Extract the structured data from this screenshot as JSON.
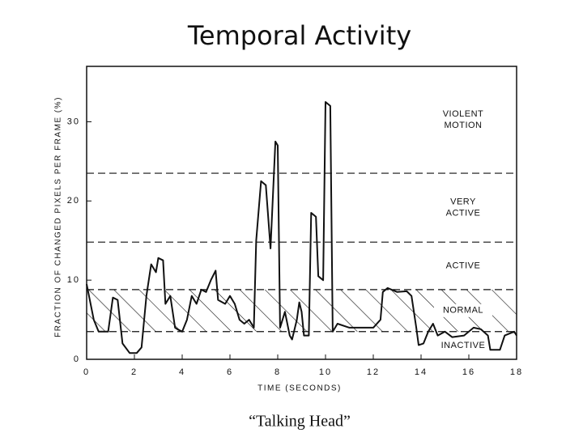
{
  "title": "Temporal Activity",
  "caption": "“Talking Head”",
  "chart_data": {
    "type": "line",
    "x_label": "TIME (SECONDS)",
    "y_label": "FRACTION OF CHANGED PIXELS PER FRAME (%)",
    "xlim": [
      0,
      18
    ],
    "xticks": [
      0,
      2,
      4,
      6,
      8,
      10,
      12,
      14,
      16,
      18
    ],
    "ylim": [
      0,
      37
    ],
    "yticks": [
      0,
      10,
      20,
      30
    ],
    "thresholds": [
      23.5,
      14.8,
      8.8,
      3.5
    ],
    "zones": [
      "VIOLENT MOTION",
      "VERY ACTIVE",
      "ACTIVE",
      "NORMAL",
      "INACTIVE"
    ],
    "color": "#111111",
    "x": [
      0,
      0.3,
      0.5,
      0.9,
      1.1,
      1.3,
      1.5,
      1.8,
      2.1,
      2.3,
      2.5,
      2.7,
      2.9,
      3.0,
      3.2,
      3.3,
      3.5,
      3.7,
      3.8,
      4.0,
      4.2,
      4.4,
      4.6,
      4.8,
      5.0,
      5.2,
      5.4,
      5.5,
      5.8,
      6.0,
      6.2,
      6.4,
      6.6,
      6.8,
      7.0,
      7.1,
      7.3,
      7.5,
      7.7,
      7.9,
      8.0,
      8.1,
      8.3,
      8.5,
      8.6,
      8.8,
      8.9,
      9.0,
      9.1,
      9.3,
      9.4,
      9.6,
      9.7,
      9.9,
      10.0,
      10.2,
      10.3,
      10.5,
      11,
      12,
      12.3,
      12.4,
      12.6,
      13,
      13.4,
      13.6,
      13.8,
      13.9,
      14.1,
      14.3,
      14.5,
      14.7,
      15,
      15.3,
      15.8,
      16.2,
      16.5,
      16.8,
      16.9,
      17.3,
      17.5,
      17.9,
      18
    ],
    "values": [
      9.5,
      5,
      3.5,
      3.5,
      7.8,
      7.5,
      2,
      0.8,
      0.8,
      1.5,
      8,
      12,
      11,
      12.8,
      12.5,
      7,
      8,
      4,
      3.8,
      3.5,
      5,
      8,
      7,
      8.8,
      8.5,
      10,
      11.2,
      7.5,
      7,
      8,
      7,
      5,
      4.5,
      5,
      4,
      15,
      22.5,
      22,
      14,
      27.5,
      27,
      4,
      6,
      3,
      2.5,
      5,
      7.2,
      6,
      3,
      3,
      18.5,
      18,
      10.5,
      10,
      32.5,
      32,
      3.5,
      4.5,
      4,
      4,
      5,
      8.5,
      9,
      8.5,
      8.6,
      8,
      4,
      1.8,
      2,
      3.5,
      4.5,
      3,
      3.5,
      2.8,
      3,
      4,
      3.8,
      3,
      1.2,
      1.2,
      3,
      3.5,
      3
    ]
  }
}
